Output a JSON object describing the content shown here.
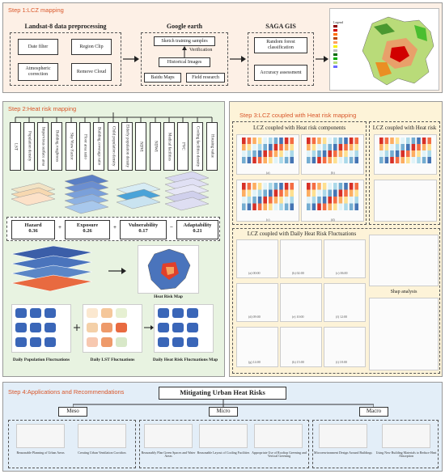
{
  "colors": {
    "step1_bg": "#fdf0e6",
    "step2_bg": "#e8f3e1",
    "step3_bg": "#fdf3d8",
    "step4_bg": "#e3eef8",
    "step_title": "#d9572b"
  },
  "step1": {
    "title": "Step 1:LCZ mapping",
    "landsat": {
      "head": "Landsat-8 data preprocessing",
      "items": [
        "Date filter",
        "Region Clip",
        "Atmospheric correction",
        "Remove Cloud"
      ]
    },
    "google": {
      "head": "Google earth",
      "items": [
        "Sketch training samples",
        "Verification",
        "Historical Images",
        "Baidu Maps",
        "Field research"
      ]
    },
    "saga": {
      "head": "SAGA GIS",
      "items": [
        "Random forest classification",
        "Accuracy assessment"
      ]
    },
    "map_legend": "Legend"
  },
  "step2": {
    "title": "Step 2:Heat risk mapping",
    "indicators": [
      "LST",
      "Population density",
      "Impervious surface area",
      "Building roughness",
      "Sky View Factor",
      "Floor area ratio",
      "Building coverage ratio",
      "Child population density",
      "Elderly population density",
      "NDVI",
      "NDWI",
      "Medical facilities",
      "FVC",
      "Cooling facilities density",
      "Housing value"
    ],
    "components": [
      {
        "name": "Hazard",
        "weight": "0.36"
      },
      {
        "name": "Exposure",
        "weight": "0.26"
      },
      {
        "name": "Vulnerability",
        "weight": "0.17"
      },
      {
        "name": "Adaptability",
        "weight": "0.21"
      }
    ],
    "operators": [
      "+",
      "+",
      "−"
    ],
    "heat_risk_map": "Heat Risk Map",
    "bottom_captions": [
      "Daily Population Fluctuations",
      "Daily LST Fluctuations",
      "Daily Heat Risk Fluctuations Map"
    ]
  },
  "step3": {
    "title": "Step 3:LCZ coupled with Heat risk mapping",
    "components_head": "LCZ coupled with Heat risk components",
    "heatrisk_head": "LCZ coupled with Heat risk",
    "fluct_head": "LCZ coupled with  Daily Heat Risk Fluctuations",
    "shap_head": "Shap analysis",
    "time_labels": [
      "(a) 00:00",
      "(b) 02:00",
      "(c) 06:00",
      "(d) 09:00",
      "(e) 10:00",
      "(f) 12:00",
      "(g) 14:00",
      "(h) 15:00",
      "(i) 18:00"
    ],
    "panel_labels": [
      "(a)",
      "(b)",
      "(c)",
      "(d)"
    ]
  },
  "step4": {
    "title": "Step 4:Applications and Recommendations",
    "main": "Mitigating Urban Heat Risks",
    "groups": [
      {
        "name": "Meso",
        "items": [
          "Reasonable Planning of Urban Areas",
          "Creating Urban Ventilation Corridors"
        ]
      },
      {
        "name": "Micro",
        "items": [
          "Reasonably Plan Green Spaces and Water Areas",
          "Reasonable Layout of Cooling Facilities",
          "Appropriate Use of Rooftop Greening and Vertical Greening"
        ]
      },
      {
        "name": "Macro",
        "items": [
          "Microenvironment Design Around Buildings",
          "Using New Building Materials to Reduce Heat Absorption"
        ]
      }
    ]
  }
}
